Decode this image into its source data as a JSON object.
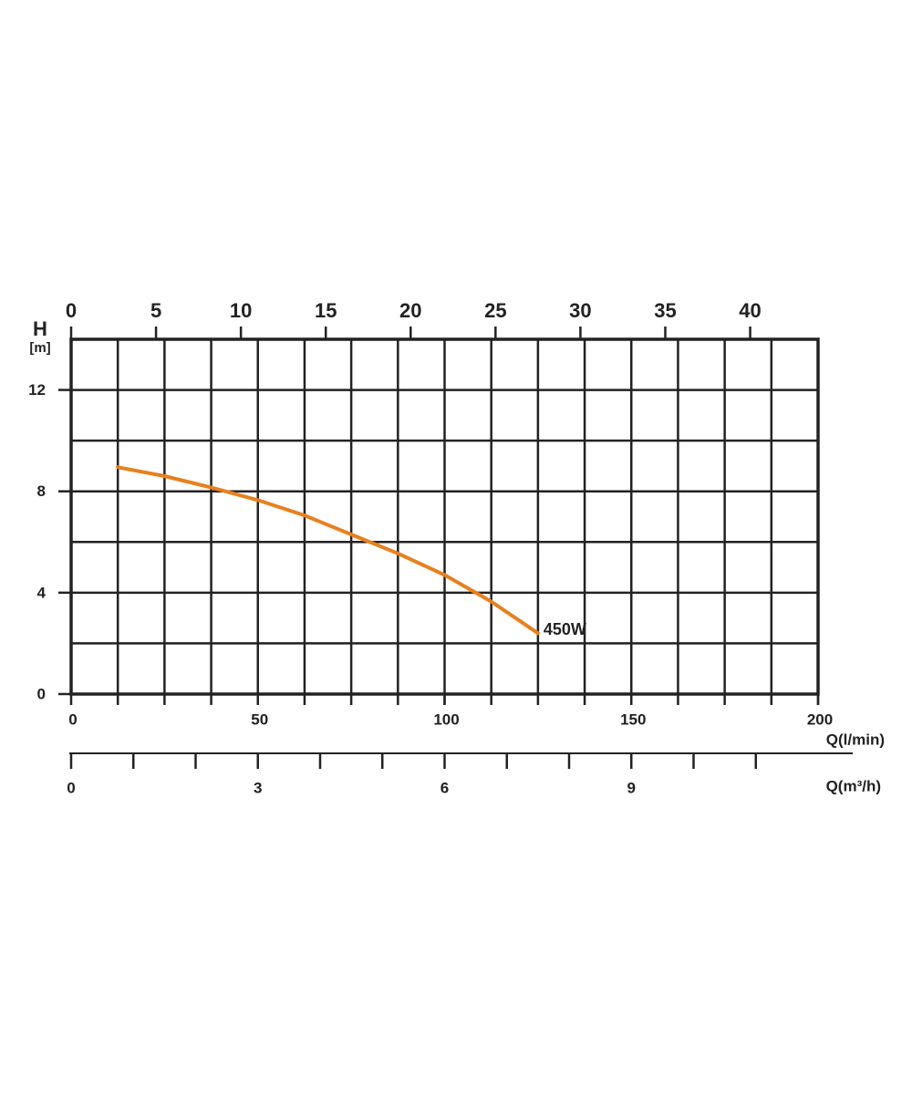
{
  "chart_data": {
    "type": "line",
    "ylabel": "H",
    "yunit": "[m]",
    "ylim": [
      0,
      14
    ],
    "yticks": [
      0,
      4,
      8,
      12
    ],
    "ygrid": [
      2,
      4,
      6,
      8,
      10,
      12,
      14
    ],
    "xlabel": "Q(l/min)",
    "xlim": [
      0,
      200
    ],
    "xticks": [
      0,
      50,
      100,
      150,
      200
    ],
    "xgrid": [
      12.5,
      25,
      37.5,
      50,
      62.5,
      75,
      87.5,
      100,
      112.5,
      125,
      137.5,
      150,
      162.5,
      175,
      187.5,
      200
    ],
    "top_axis": {
      "xlim": [
        0,
        44
      ],
      "xticks": [
        0,
        5,
        10,
        15,
        20,
        25,
        30,
        35,
        40
      ]
    },
    "flow_axis": {
      "label": "Q(m³/h)",
      "xlim": [
        0,
        12
      ],
      "xticks": [
        0,
        3,
        6,
        9
      ],
      "minor_ticks": [
        1,
        2,
        4,
        5,
        7,
        8,
        10,
        11
      ]
    },
    "series": [
      {
        "name": "450W",
        "color": "#e8801e",
        "x": [
          12.5,
          25,
          37.5,
          50,
          62.5,
          75,
          87.5,
          100,
          112.5,
          125
        ],
        "values": [
          8.95,
          8.6,
          8.15,
          7.65,
          7.05,
          6.3,
          5.55,
          4.7,
          3.65,
          2.4
        ]
      }
    ]
  }
}
